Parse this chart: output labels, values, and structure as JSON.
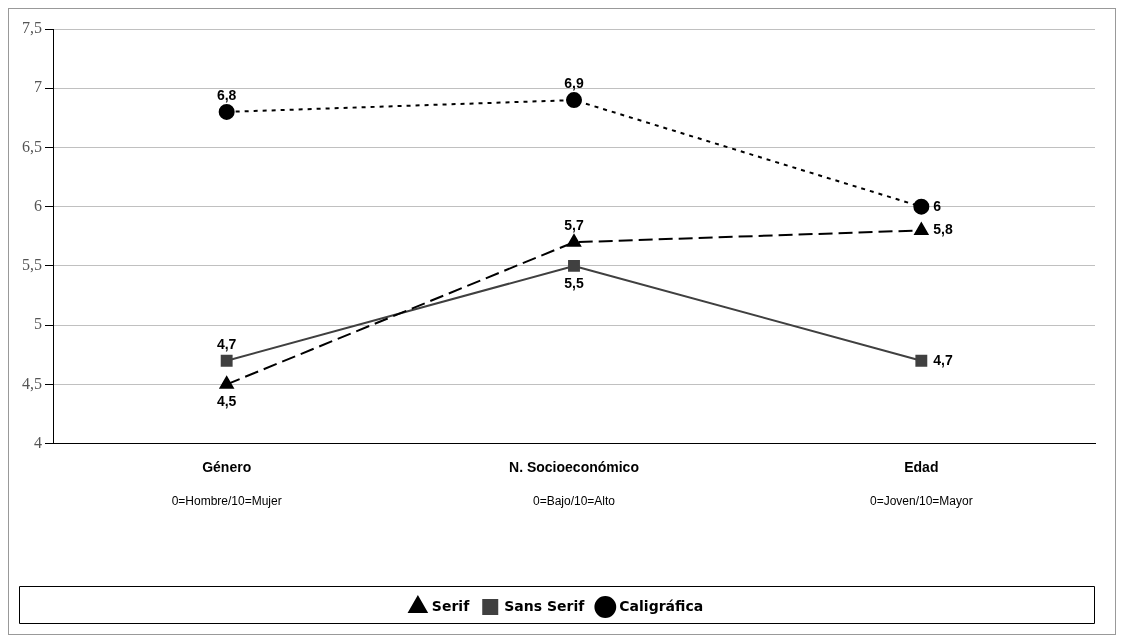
{
  "chart_data": {
    "type": "line",
    "categories": [
      "Género\n0=Hombre/10=Mujer",
      "N. Socioeconómico\n0=Bajo/10=Alto",
      "Edad\n0=Joven/10=Mayor"
    ],
    "series": [
      {
        "name": "Serif",
        "color": "#000000",
        "values": [
          4.5,
          5.7,
          5.8
        ],
        "value_labels": [
          "4,5",
          "5,7",
          "5,8"
        ],
        "marker": "triangle",
        "line_style": "dashed"
      },
      {
        "name": "Sans Serif",
        "color": "#404040",
        "values": [
          4.7,
          5.5,
          4.7
        ],
        "value_labels": [
          "4,7",
          "5,5",
          "4,7"
        ],
        "marker": "square",
        "line_style": "solid"
      },
      {
        "name": "Caligráfica",
        "color": "#000000",
        "values": [
          6.8,
          6.9,
          6
        ],
        "value_labels": [
          "6,8",
          "6,9",
          "6"
        ],
        "marker": "circle",
        "line_style": "dotted"
      }
    ],
    "ylim": [
      4,
      7.5
    ],
    "yticks": [
      4,
      {
        "value": 4.5,
        "label": "4,5"
      },
      5,
      {
        "value": 5.5,
        "label": "5,5"
      },
      6,
      {
        "value": 6.5,
        "label": "6,5"
      },
      7,
      {
        "value": 7.5,
        "label": "7,5"
      }
    ],
    "grid": "y",
    "legend": "bottom"
  }
}
